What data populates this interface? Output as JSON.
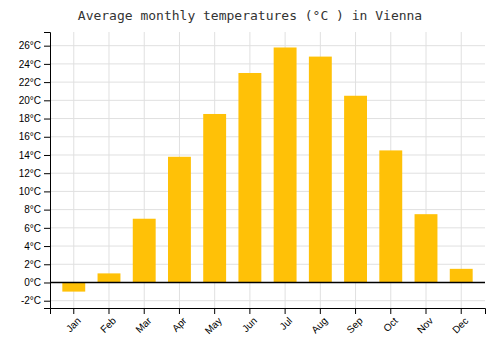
{
  "chart_data": {
    "type": "bar",
    "title": "Average monthly temperatures (°C ) in Vienna",
    "categories": [
      "Jan",
      "Feb",
      "Mar",
      "Apr",
      "May",
      "Jun",
      "Jul",
      "Aug",
      "Sep",
      "Oct",
      "Nov",
      "Dec"
    ],
    "values": [
      -1.0,
      1.0,
      7.0,
      13.8,
      18.5,
      23.0,
      25.8,
      24.8,
      20.5,
      14.5,
      7.5,
      1.5
    ],
    "color": "#FFC107",
    "ylim": [
      -2.8,
      27.5
    ],
    "yticks": [
      {
        "value": -2,
        "label": "-2°C"
      },
      {
        "value": 0,
        "label": "0°C"
      },
      {
        "value": 2,
        "label": "2°C"
      },
      {
        "value": 4,
        "label": "4°C"
      },
      {
        "value": 6,
        "label": "6°C"
      },
      {
        "value": 8,
        "label": "8°C"
      },
      {
        "value": 10,
        "label": "10°C"
      },
      {
        "value": 12,
        "label": "12°C"
      },
      {
        "value": 14,
        "label": "14°C"
      },
      {
        "value": 16,
        "label": "16°C"
      },
      {
        "value": 18,
        "label": "18°C"
      },
      {
        "value": 20,
        "label": "20°C"
      },
      {
        "value": 22,
        "label": "22°C"
      },
      {
        "value": 24,
        "label": "24°C"
      },
      {
        "value": 26,
        "label": "26°C"
      }
    ],
    "grid": true
  }
}
